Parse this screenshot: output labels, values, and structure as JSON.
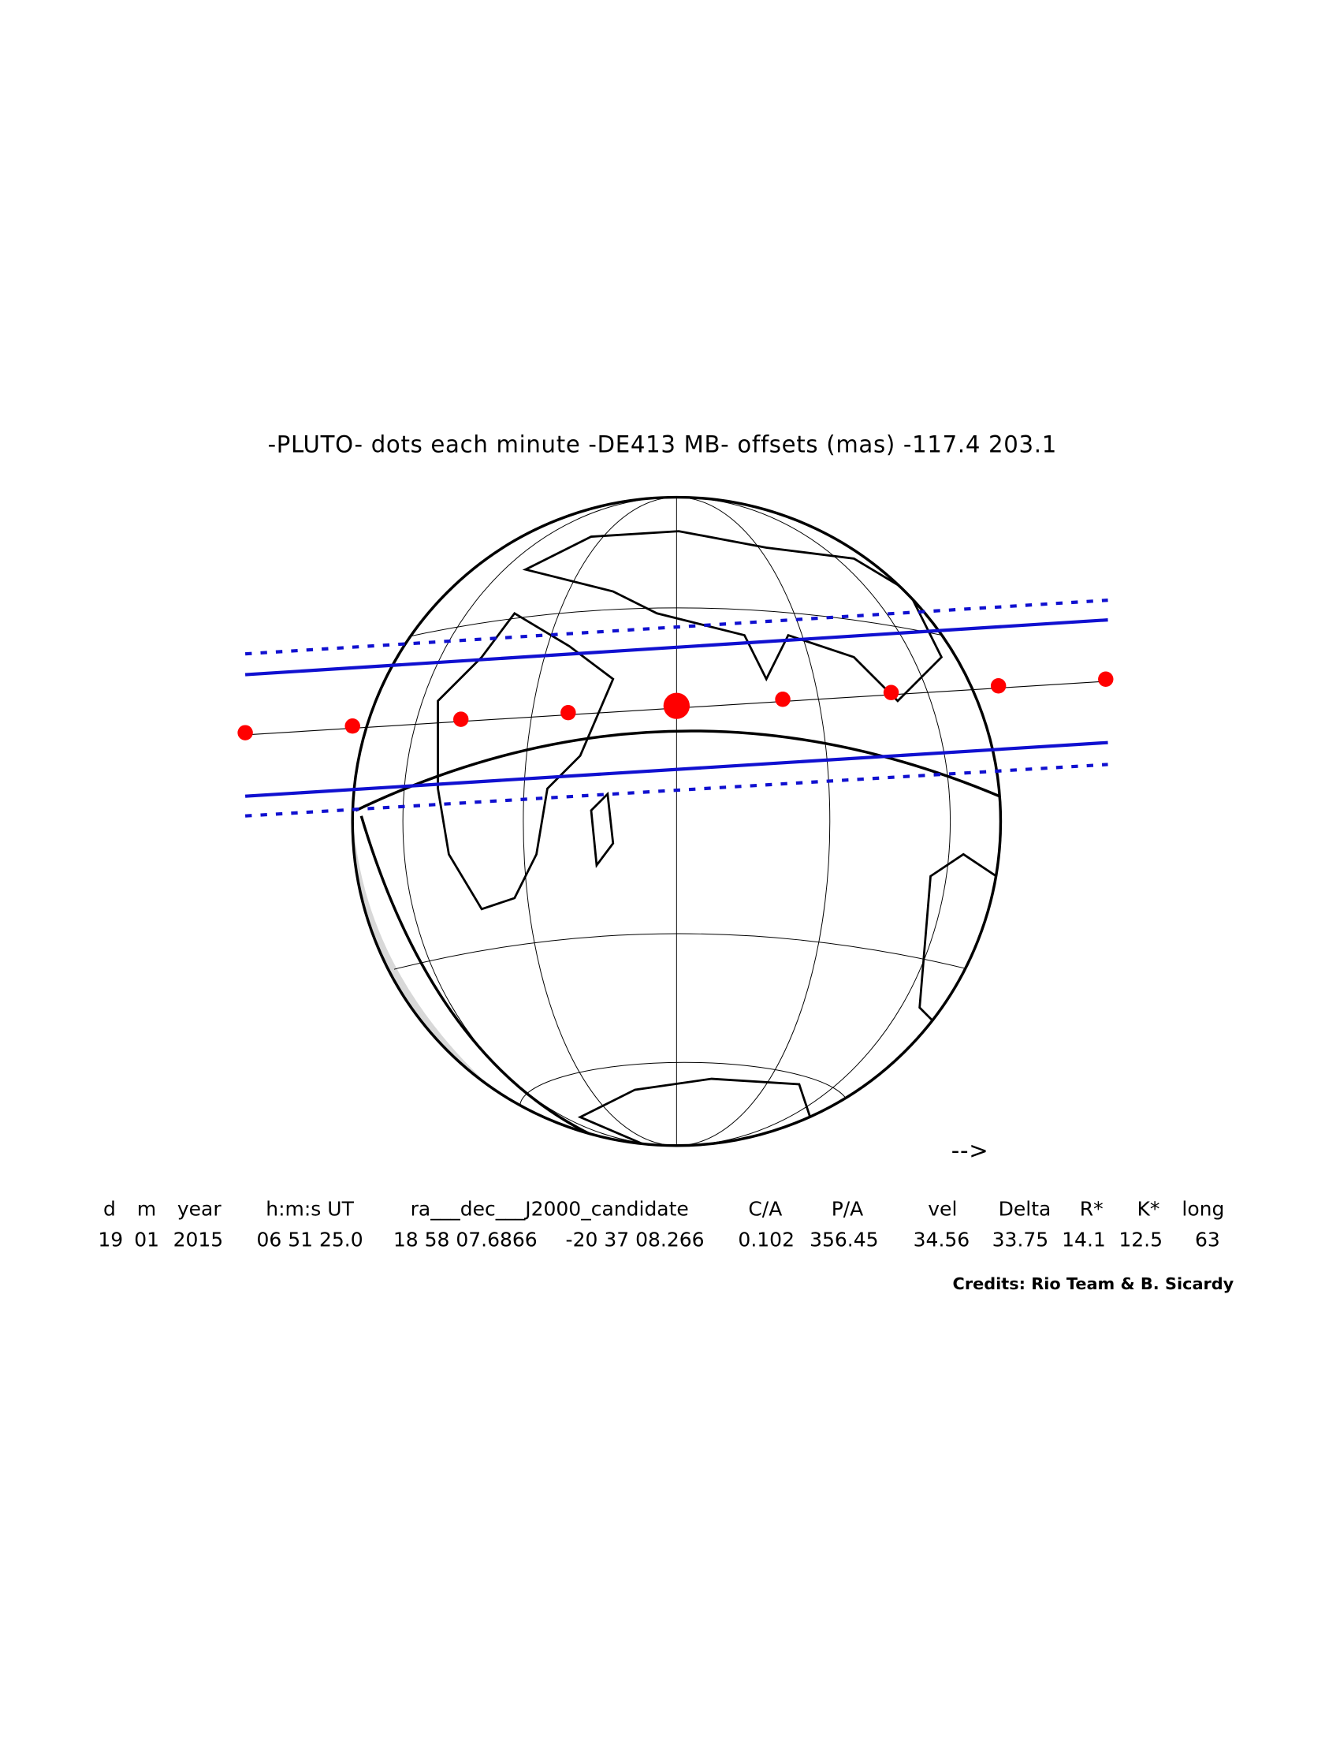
{
  "title": "-PLUTO- dots each minute -DE413 MB- offsets (mas) -117.4  203.1",
  "direction_arrow": "-->",
  "table": {
    "header": [
      "d",
      "m",
      "year",
      "h:m:s UT",
      "ra___dec___J2000_candidate",
      "C/A",
      "P/A",
      "vel",
      "Delta",
      "R*",
      "K*",
      "long"
    ],
    "values": [
      "19",
      "01",
      "2015",
      "06 51 25.0",
      "18 58 07.6866",
      "-20 37 08.266",
      "0.102",
      "356.45",
      "34.56",
      "33.75",
      "14.1",
      "12.5",
      "63"
    ]
  },
  "credits": "Credits: Rio Team & B. Sicardy"
}
